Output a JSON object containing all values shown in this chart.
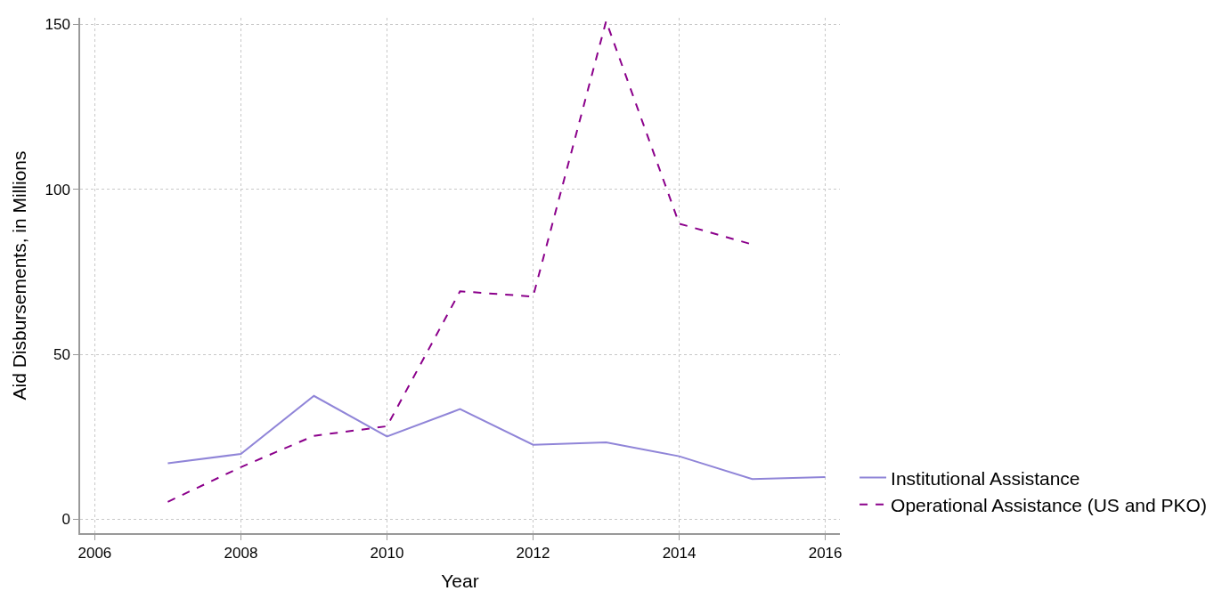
{
  "chart_data": {
    "type": "line",
    "xlabel": "Year",
    "ylabel": "Aid Disbursements, in Millions",
    "x": [
      2007,
      2008,
      2009,
      2010,
      2011,
      2012,
      2013,
      2014,
      2015,
      2016
    ],
    "series": [
      {
        "name": "Institutional Assistance",
        "color": "#9085d8",
        "line_style": "solid",
        "values": [
          17,
          19.8,
          37.4,
          25.1,
          33.4,
          22.6,
          23.3,
          19.1,
          12.2,
          12.8
        ]
      },
      {
        "name": "Operational Assistance (US and PKO)",
        "color": "#8b008b",
        "line_style": "dashed",
        "values": [
          5.3,
          15.8,
          25.3,
          28.2,
          69.1,
          67.5,
          151,
          89.6,
          83.3,
          null
        ]
      }
    ],
    "xlim": [
      2005.8,
      2016.2
    ],
    "xticks": [
      2006,
      2008,
      2010,
      2012,
      2014,
      2016
    ],
    "ylim": [
      -4.2,
      152
    ],
    "yticks": [
      0,
      50,
      100,
      150
    ],
    "grid": true,
    "legend": "bottom right",
    "marker": "none"
  }
}
